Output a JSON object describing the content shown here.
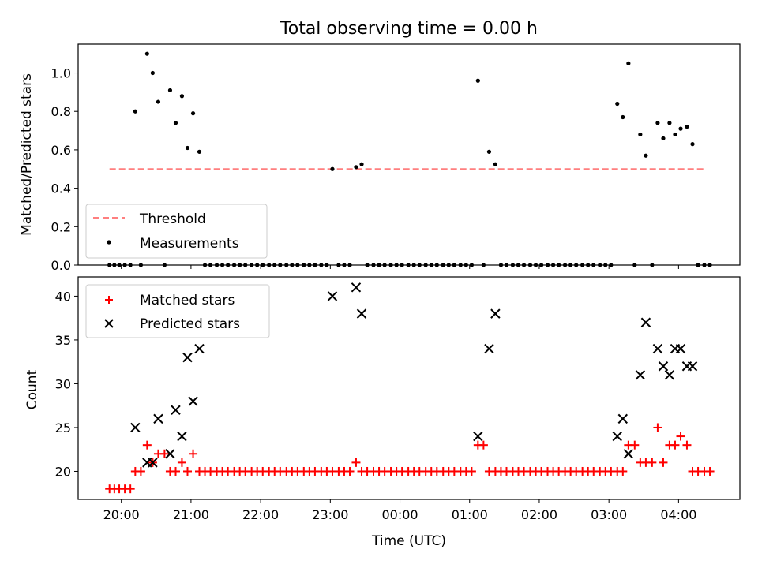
{
  "title": "Total observing time = 0.00 h",
  "x_axis": {
    "label": "Time (UTC)",
    "ticks": [
      {
        "label": "20:00",
        "x": 20
      },
      {
        "label": "21:00",
        "x": 21
      },
      {
        "label": "22:00",
        "x": 22
      },
      {
        "label": "23:00",
        "x": 23
      },
      {
        "label": "00:00",
        "x": 24
      },
      {
        "label": "01:00",
        "x": 25
      },
      {
        "label": "02:00",
        "x": 26
      },
      {
        "label": "03:00",
        "x": 27
      },
      {
        "label": "04:00",
        "x": 28
      }
    ]
  },
  "colors": {
    "threshold": "#ff7f7f",
    "measurements": "#000000",
    "matched": "#ff0000",
    "predicted": "#000000"
  },
  "chart_data": [
    {
      "type": "scatter",
      "ylabel": "Matched/Predicted stars",
      "xlim": [
        19.38,
        28.88
      ],
      "ylim": [
        0.0,
        1.15
      ],
      "yticks": [
        0.0,
        0.2,
        0.4,
        0.6,
        0.8,
        1.0
      ],
      "legend": "lower-left",
      "threshold": {
        "name": "Threshold",
        "y": 0.5,
        "x": [
          19.83,
          28.4
        ]
      },
      "series": [
        {
          "name": "Measurements",
          "x": [
            19.83,
            19.9,
            19.97,
            20.05,
            20.13,
            20.2,
            20.28,
            20.37,
            20.45,
            20.53,
            20.62,
            20.7,
            20.78,
            20.87,
            20.95,
            21.03,
            21.12,
            21.2,
            21.28,
            21.37,
            21.45,
            21.53,
            21.62,
            21.7,
            21.78,
            21.87,
            21.95,
            22.03,
            22.12,
            22.2,
            22.28,
            22.37,
            22.45,
            22.53,
            22.62,
            22.7,
            22.78,
            22.87,
            22.95,
            23.03,
            23.12,
            23.2,
            23.28,
            23.37,
            23.45,
            23.53,
            23.62,
            23.7,
            23.78,
            23.87,
            23.95,
            24.03,
            24.12,
            24.2,
            24.28,
            24.37,
            24.45,
            24.53,
            24.62,
            24.7,
            24.78,
            24.87,
            24.95,
            25.03,
            25.12,
            25.2,
            25.28,
            25.37,
            25.45,
            25.53,
            25.62,
            25.7,
            25.78,
            25.87,
            25.95,
            26.03,
            26.12,
            26.2,
            26.28,
            26.37,
            26.45,
            26.53,
            26.62,
            26.7,
            26.78,
            26.87,
            26.95,
            27.03,
            27.12,
            27.2,
            27.28,
            27.37,
            27.45,
            27.53,
            27.62,
            27.7,
            27.78,
            27.87,
            27.95,
            28.03,
            28.12,
            28.2,
            28.28,
            28.37,
            28.45
          ],
          "y": [
            0.0,
            0.0,
            0.0,
            0.0,
            0.0,
            0.8,
            0.0,
            1.1,
            1.0,
            0.85,
            0.0,
            0.91,
            0.74,
            0.88,
            0.61,
            0.79,
            0.59,
            0.0,
            0.0,
            0.0,
            0.0,
            0.0,
            0.0,
            0.0,
            0.0,
            0.0,
            0.0,
            0.0,
            0.0,
            0.0,
            0.0,
            0.0,
            0.0,
            0.0,
            0.0,
            0.0,
            0.0,
            0.0,
            0.0,
            0.5,
            0.0,
            0.0,
            0.0,
            0.51,
            0.525,
            0.0,
            0.0,
            0.0,
            0.0,
            0.0,
            0.0,
            0.0,
            0.0,
            0.0,
            0.0,
            0.0,
            0.0,
            0.0,
            0.0,
            0.0,
            0.0,
            0.0,
            0.0,
            0.0,
            0.96,
            0.0,
            0.59,
            0.525,
            0.0,
            0.0,
            0.0,
            0.0,
            0.0,
            0.0,
            0.0,
            0.0,
            0.0,
            0.0,
            0.0,
            0.0,
            0.0,
            0.0,
            0.0,
            0.0,
            0.0,
            0.0,
            0.0,
            0.0,
            0.84,
            0.77,
            1.05,
            0.0,
            0.68,
            0.57,
            0.0,
            0.74,
            0.66,
            0.74,
            0.68,
            0.71,
            0.72,
            0.63,
            0.0,
            0.0,
            0.0
          ]
        }
      ]
    },
    {
      "type": "scatter",
      "xlabel": "Time (UTC)",
      "ylabel": "Count",
      "xlim": [
        19.38,
        28.88
      ],
      "ylim": [
        16.8,
        42.2
      ],
      "yticks": [
        20,
        25,
        30,
        35,
        40
      ],
      "legend": "top-left",
      "series": [
        {
          "name": "Matched stars",
          "x": [
            19.83,
            19.9,
            19.97,
            20.05,
            20.13,
            20.2,
            20.28,
            20.37,
            20.45,
            20.53,
            20.62,
            20.7,
            20.78,
            20.87,
            20.95,
            21.03,
            21.12,
            21.2,
            21.28,
            21.37,
            21.45,
            21.53,
            21.62,
            21.7,
            21.78,
            21.87,
            21.95,
            22.03,
            22.12,
            22.2,
            22.28,
            22.37,
            22.45,
            22.53,
            22.62,
            22.7,
            22.78,
            22.87,
            22.95,
            23.03,
            23.12,
            23.2,
            23.28,
            23.37,
            23.45,
            23.53,
            23.62,
            23.7,
            23.78,
            23.87,
            23.95,
            24.03,
            24.12,
            24.2,
            24.28,
            24.37,
            24.45,
            24.53,
            24.62,
            24.7,
            24.78,
            24.87,
            24.95,
            25.03,
            25.12,
            25.2,
            25.28,
            25.37,
            25.45,
            25.53,
            25.62,
            25.7,
            25.78,
            25.87,
            25.95,
            26.03,
            26.12,
            26.2,
            26.28,
            26.37,
            26.45,
            26.53,
            26.62,
            26.7,
            26.78,
            26.87,
            26.95,
            27.03,
            27.12,
            27.2,
            27.28,
            27.37,
            27.45,
            27.53,
            27.62,
            27.7,
            27.78,
            27.87,
            27.95,
            28.03,
            28.12,
            28.2,
            28.28,
            28.37,
            28.45
          ],
          "y": [
            18,
            18,
            18,
            18,
            18,
            20,
            20,
            23,
            21,
            22,
            22,
            20,
            20,
            21,
            20,
            22,
            20,
            20,
            20,
            20,
            20,
            20,
            20,
            20,
            20,
            20,
            20,
            20,
            20,
            20,
            20,
            20,
            20,
            20,
            20,
            20,
            20,
            20,
            20,
            20,
            20,
            20,
            20,
            21,
            20,
            20,
            20,
            20,
            20,
            20,
            20,
            20,
            20,
            20,
            20,
            20,
            20,
            20,
            20,
            20,
            20,
            20,
            20,
            20,
            23,
            23,
            20,
            20,
            20,
            20,
            20,
            20,
            20,
            20,
            20,
            20,
            20,
            20,
            20,
            20,
            20,
            20,
            20,
            20,
            20,
            20,
            20,
            20,
            20,
            20,
            23,
            23,
            21,
            21,
            21,
            25,
            21,
            23,
            23,
            24,
            23,
            20,
            20,
            20,
            20
          ]
        },
        {
          "name": "Predicted stars",
          "x": [
            20.2,
            20.37,
            20.45,
            20.53,
            20.7,
            20.78,
            20.87,
            20.95,
            21.03,
            21.12,
            23.03,
            23.37,
            23.45,
            25.12,
            25.28,
            25.37,
            27.12,
            27.2,
            27.28,
            27.45,
            27.53,
            27.7,
            27.78,
            27.87,
            27.95,
            28.03,
            28.12,
            28.2
          ],
          "y": [
            25,
            21,
            21,
            26,
            22,
            27,
            24,
            33,
            28,
            34,
            40,
            41,
            38,
            24,
            34,
            38,
            24,
            26,
            22,
            31,
            37,
            34,
            32,
            31,
            34,
            34,
            32,
            32
          ]
        }
      ]
    }
  ]
}
